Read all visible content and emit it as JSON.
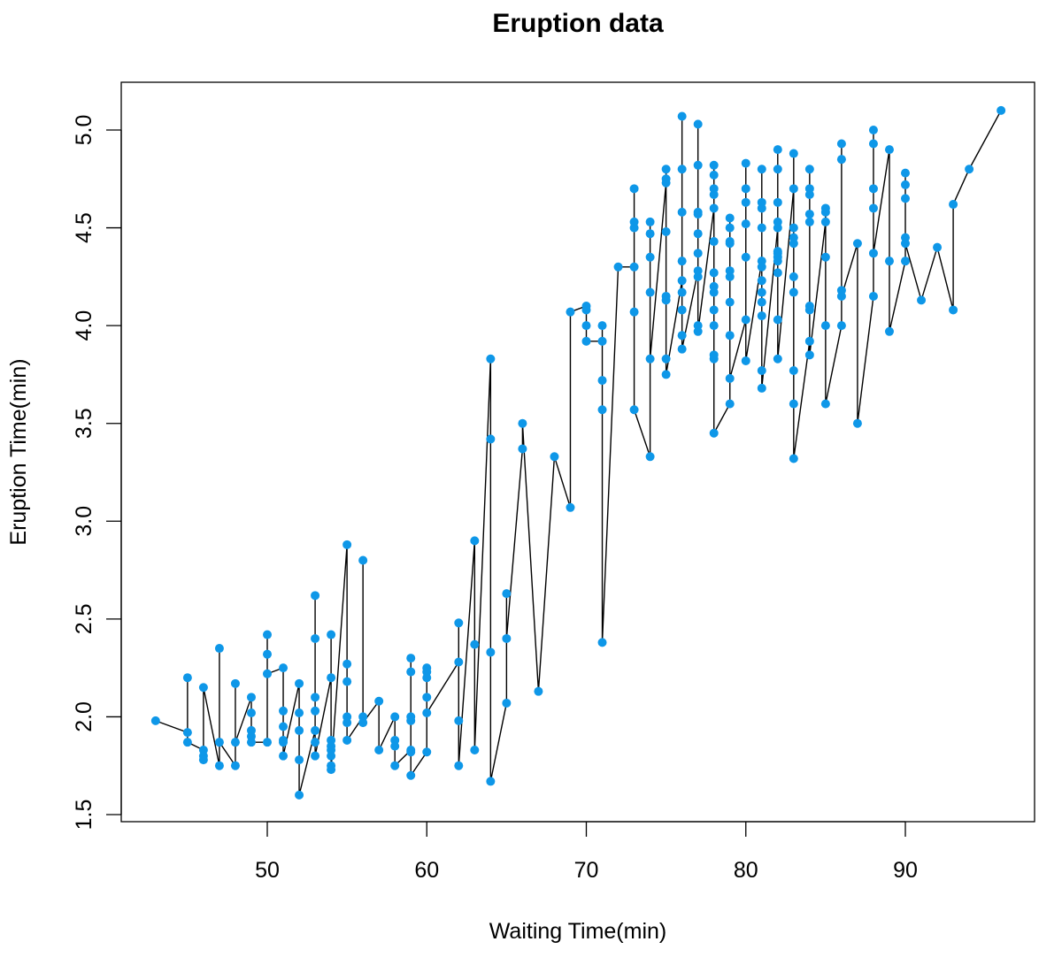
{
  "chart_data": {
    "type": "line",
    "title": "Eruption data",
    "xlabel": "Waiting Time(min)",
    "ylabel": "Eruption Time(min)",
    "xlim": [
      43,
      96
    ],
    "ylim": [
      1.5,
      5.1
    ],
    "xticks": [
      "50",
      "60",
      "70",
      "80",
      "90"
    ],
    "yticks": [
      "1.5",
      "2.0",
      "2.5",
      "3.0",
      "3.5",
      "4.0",
      "4.5",
      "5.0"
    ],
    "grid": false,
    "point_color": "#0e97e8",
    "line_color": "#000000",
    "groups": [
      {
        "x": 43,
        "y": [
          1.98
        ]
      },
      {
        "x": 45,
        "y": [
          1.92,
          2.2,
          1.87
        ]
      },
      {
        "x": 46,
        "y": [
          1.83,
          1.8,
          1.78,
          2.15
        ]
      },
      {
        "x": 47,
        "y": [
          1.75,
          2.35,
          1.87
        ]
      },
      {
        "x": 48,
        "y": [
          1.75,
          2.17,
          1.87
        ]
      },
      {
        "x": 49,
        "y": [
          2.1,
          2.02,
          1.93,
          1.9,
          1.87
        ]
      },
      {
        "x": 50,
        "y": [
          1.87,
          2.42,
          2.32,
          2.22
        ]
      },
      {
        "x": 51,
        "y": [
          2.25,
          2.03,
          1.95,
          1.88,
          1.87,
          1.8
        ]
      },
      {
        "x": 52,
        "y": [
          2.17,
          2.02,
          1.93,
          1.78,
          1.6
        ]
      },
      {
        "x": 53,
        "y": [
          1.93,
          2.62,
          2.4,
          2.1,
          2.03,
          1.87,
          1.8
        ]
      },
      {
        "x": 54,
        "y": [
          2.2,
          2.42,
          1.88,
          1.85,
          1.83,
          1.8,
          1.75,
          1.73
        ]
      },
      {
        "x": 55,
        "y": [
          2.88,
          2.27,
          2.18,
          2.0,
          1.97,
          1.88
        ]
      },
      {
        "x": 56,
        "y": [
          2.0,
          2.8,
          1.97
        ]
      },
      {
        "x": 57,
        "y": [
          2.08,
          1.83
        ]
      },
      {
        "x": 58,
        "y": [
          2.0,
          1.88,
          1.85,
          1.75
        ]
      },
      {
        "x": 59,
        "y": [
          1.83,
          2.3,
          2.23,
          2.0,
          1.98,
          1.82,
          1.7
        ]
      },
      {
        "x": 60,
        "y": [
          1.82,
          2.25,
          2.23,
          2.2,
          2.1,
          2.02
        ]
      },
      {
        "x": 62,
        "y": [
          2.28,
          2.48,
          1.98,
          1.75
        ]
      },
      {
        "x": 63,
        "y": [
          2.9,
          2.37,
          1.83
        ]
      },
      {
        "x": 64,
        "y": [
          3.83,
          3.42,
          2.33,
          1.67
        ]
      },
      {
        "x": 65,
        "y": [
          2.07,
          2.63,
          2.4
        ]
      },
      {
        "x": 66,
        "y": [
          3.37,
          3.5
        ]
      },
      {
        "x": 67,
        "y": [
          2.13
        ]
      },
      {
        "x": 68,
        "y": [
          3.33
        ]
      },
      {
        "x": 69,
        "y": [
          3.07,
          4.07
        ]
      },
      {
        "x": 70,
        "y": [
          4.1,
          4.08,
          4.0,
          3.92
        ]
      },
      {
        "x": 71,
        "y": [
          3.92,
          4.0,
          3.72,
          3.57,
          2.38
        ]
      },
      {
        "x": 72,
        "y": [
          4.3
        ]
      },
      {
        "x": 73,
        "y": [
          4.3,
          4.7,
          4.53,
          4.5,
          4.07,
          3.57
        ]
      },
      {
        "x": 74,
        "y": [
          3.33,
          4.53,
          4.47,
          4.35,
          4.17,
          3.83
        ]
      },
      {
        "x": 75,
        "y": [
          4.73,
          4.8,
          4.75,
          4.48,
          4.15,
          4.13,
          3.83,
          3.75
        ]
      },
      {
        "x": 76,
        "y": [
          4.23,
          5.07,
          4.8,
          4.58,
          4.33,
          4.17,
          4.08,
          3.95,
          3.88
        ]
      },
      {
        "x": 77,
        "y": [
          4.28,
          5.03,
          4.82,
          4.58,
          4.57,
          4.47,
          4.37,
          4.25,
          4.0,
          3.97
        ]
      },
      {
        "x": 78,
        "y": [
          4.6,
          4.82,
          4.77,
          4.7,
          4.67,
          4.43,
          4.27,
          4.2,
          4.17,
          4.08,
          4.0,
          3.85,
          3.83,
          3.45
        ]
      },
      {
        "x": 79,
        "y": [
          3.6,
          4.55,
          4.5,
          4.43,
          4.42,
          4.28,
          4.25,
          4.12,
          3.95,
          3.73
        ]
      },
      {
        "x": 80,
        "y": [
          4.03,
          4.83,
          4.7,
          4.63,
          4.52,
          4.35,
          3.82
        ]
      },
      {
        "x": 81,
        "y": [
          4.33,
          4.8,
          4.63,
          4.6,
          4.5,
          4.3,
          4.23,
          4.17,
          4.12,
          4.05,
          3.77,
          3.68
        ]
      },
      {
        "x": 82,
        "y": [
          4.5,
          4.9,
          4.8,
          4.63,
          4.53,
          4.38,
          4.37,
          4.35,
          4.33,
          4.27,
          4.03,
          3.83
        ]
      },
      {
        "x": 83,
        "y": [
          4.7,
          4.88,
          4.5,
          4.45,
          4.42,
          4.25,
          4.17,
          3.77,
          3.6,
          3.32
        ]
      },
      {
        "x": 84,
        "y": [
          3.92,
          4.8,
          4.7,
          4.67,
          4.57,
          4.53,
          4.1,
          4.08,
          3.85
        ]
      },
      {
        "x": 85,
        "y": [
          4.53,
          4.6,
          4.58,
          4.35,
          4.0,
          3.6
        ]
      },
      {
        "x": 86,
        "y": [
          4.0,
          4.93,
          4.85,
          4.18,
          4.15
        ]
      },
      {
        "x": 87,
        "y": [
          4.42,
          3.5
        ]
      },
      {
        "x": 88,
        "y": [
          4.15,
          5.0,
          4.93,
          4.7,
          4.6,
          4.37
        ]
      },
      {
        "x": 89,
        "y": [
          4.9,
          4.33,
          3.97
        ]
      },
      {
        "x": 90,
        "y": [
          4.33,
          4.78,
          4.72,
          4.65,
          4.45,
          4.42
        ]
      },
      {
        "x": 91,
        "y": [
          4.13
        ]
      },
      {
        "x": 92,
        "y": [
          4.4
        ]
      },
      {
        "x": 93,
        "y": [
          4.08,
          4.62
        ]
      },
      {
        "x": 94,
        "y": [
          4.8
        ]
      },
      {
        "x": 96,
        "y": [
          5.1
        ]
      }
    ]
  }
}
